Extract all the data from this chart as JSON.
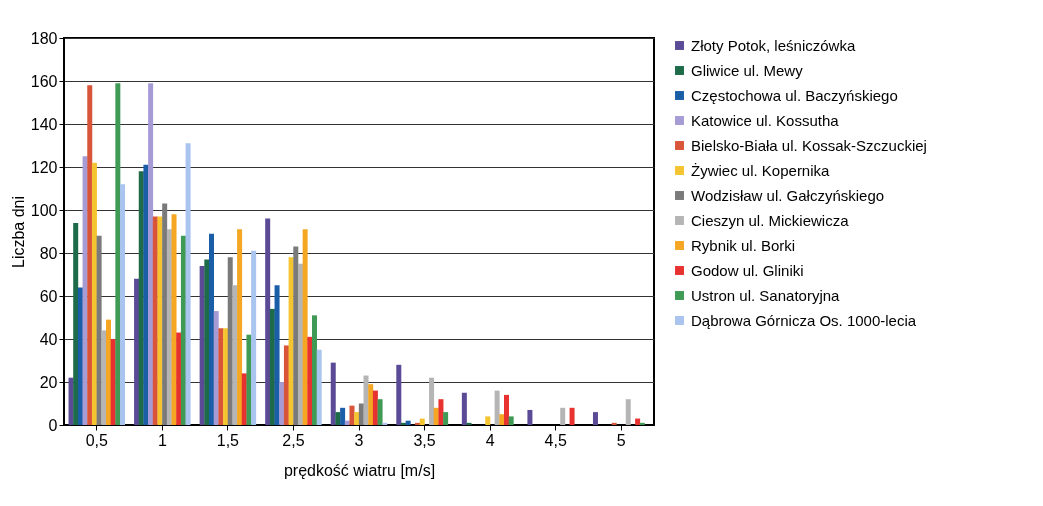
{
  "chart_data": {
    "type": "bar",
    "xlabel": "prędkość wiatru [m/s]",
    "ylabel": "Liczba dni",
    "categories": [
      "0,5",
      "1",
      "1,5",
      "2,5",
      "3",
      "3,5",
      "4",
      "4,5",
      "5"
    ],
    "ylim": [
      0,
      180
    ],
    "yticks": [
      0,
      20,
      40,
      60,
      80,
      100,
      120,
      140,
      160,
      180
    ],
    "grid": "y",
    "legend": "right",
    "series": [
      {
        "name": "Złoty Potok, leśniczówka",
        "color": "#5b4a96",
        "values": [
          22,
          68,
          74,
          96,
          29,
          28,
          15,
          7,
          6
        ]
      },
      {
        "name": "Gliwice ul. Mewy",
        "color": "#1e6b4a",
        "values": [
          94,
          118,
          77,
          54,
          6,
          1,
          1,
          0,
          0
        ]
      },
      {
        "name": "Częstochowa ul. Baczyńskiego",
        "color": "#1a5ea8",
        "values": [
          64,
          121,
          89,
          65,
          8,
          2,
          0,
          0,
          0
        ]
      },
      {
        "name": "Katowice ul. Kossutha",
        "color": "#a79bd6",
        "values": [
          125,
          159,
          53,
          20,
          2,
          0,
          0,
          0,
          0
        ]
      },
      {
        "name": "Bielsko-Biała ul. Kossak-Szczuckiej",
        "color": "#d9553a",
        "values": [
          158,
          97,
          45,
          37,
          9,
          1,
          0,
          0,
          1
        ]
      },
      {
        "name": "Żywiec ul. Kopernika",
        "color": "#f5c431",
        "values": [
          122,
          97,
          45,
          78,
          6,
          3,
          4,
          0,
          0
        ]
      },
      {
        "name": "Wodzisław ul. Gałczyńskiego",
        "color": "#7a7a7a",
        "values": [
          88,
          103,
          78,
          83,
          10,
          0,
          0,
          0,
          0
        ]
      },
      {
        "name": "Cieszyn ul. Mickiewicza",
        "color": "#b5b5b5",
        "values": [
          44,
          91,
          65,
          75,
          23,
          22,
          16,
          8,
          12
        ]
      },
      {
        "name": "Rybnik ul. Borki",
        "color": "#f5a623",
        "values": [
          49,
          98,
          91,
          91,
          19,
          8,
          5,
          0,
          0
        ]
      },
      {
        "name": "Godow ul. Gliniki",
        "color": "#e8322f",
        "values": [
          40,
          43,
          24,
          41,
          16,
          12,
          14,
          8,
          3
        ]
      },
      {
        "name": "Ustron ul. Sanatoryjna",
        "color": "#3f9a55",
        "values": [
          159,
          88,
          42,
          51,
          12,
          6,
          4,
          0,
          1
        ]
      },
      {
        "name": "Dąbrowa Górnicza Os. 1000-lecia",
        "color": "#a9c4ef",
        "values": [
          112,
          131,
          81,
          35,
          1,
          0,
          0,
          0,
          0
        ]
      }
    ]
  }
}
